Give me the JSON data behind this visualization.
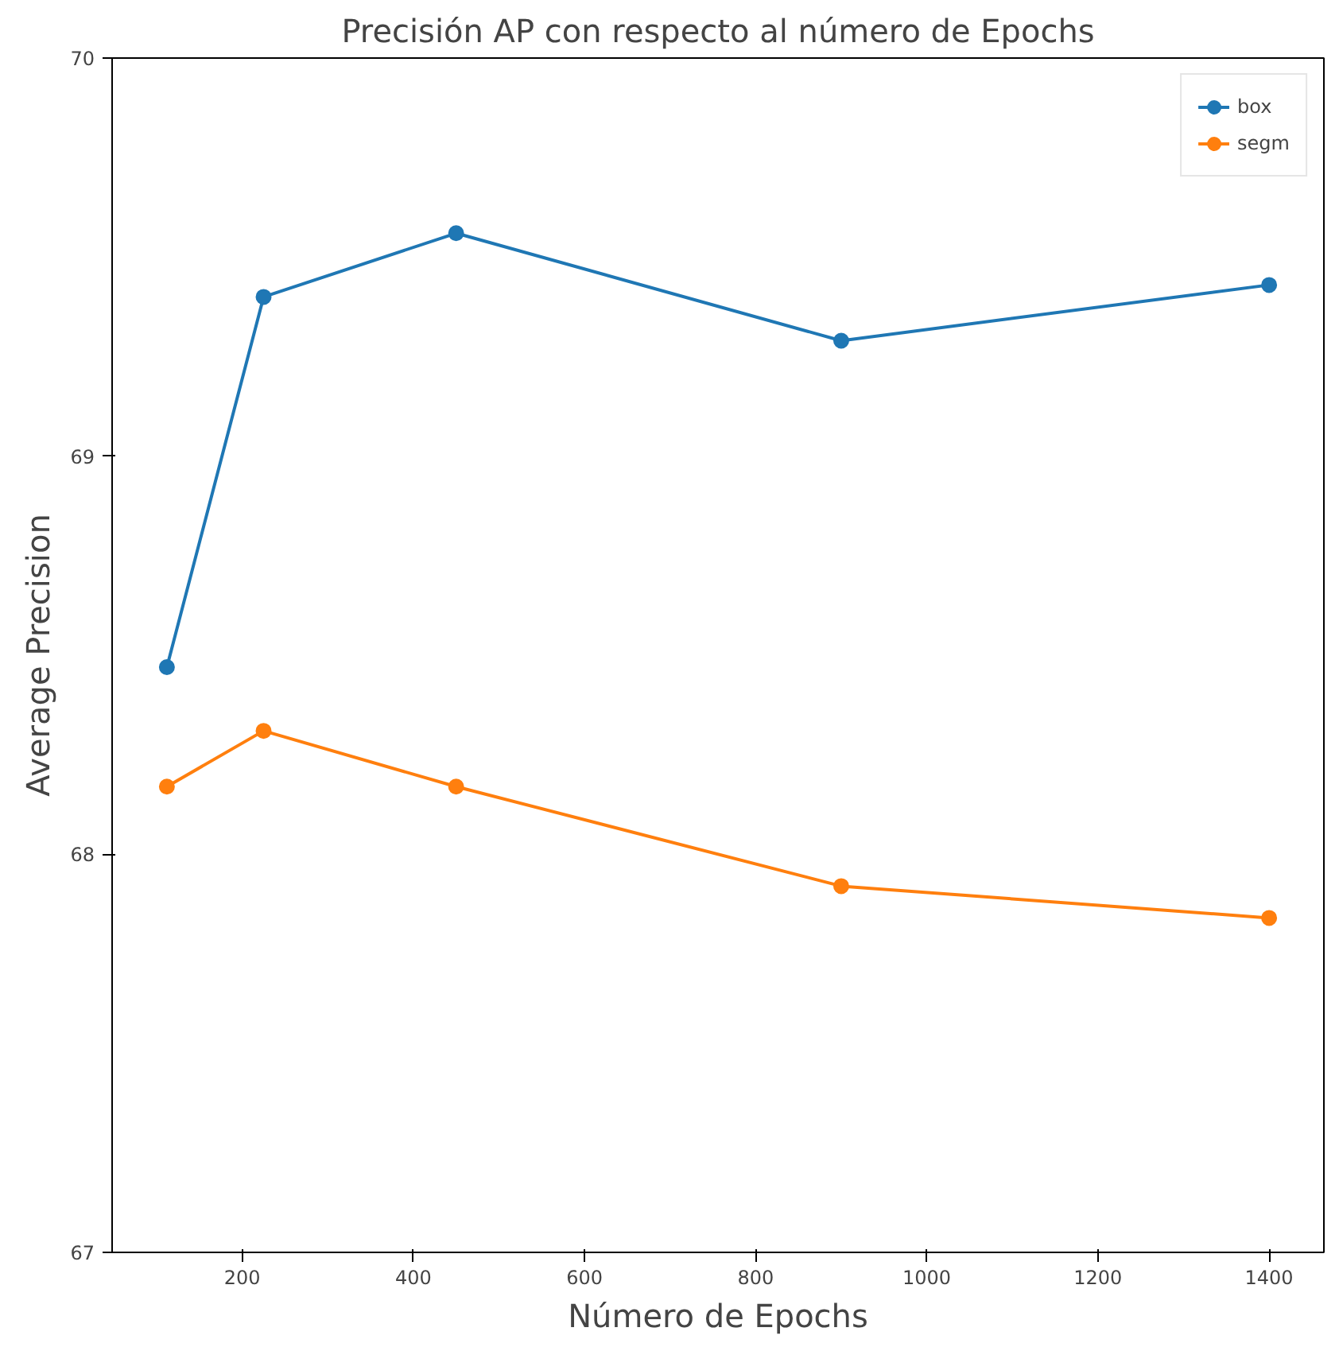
{
  "chart_data": {
    "type": "line",
    "title": "Precisión AP con respecto al número de Epochs",
    "xlabel": "Número de Epochs",
    "ylabel": "Average Precision",
    "x": [
      112,
      225,
      450,
      900,
      1400
    ],
    "series": [
      {
        "name": "box",
        "color": "#1f77b4",
        "values": [
          68.47,
          69.4,
          69.56,
          69.29,
          69.43
        ]
      },
      {
        "name": "segm",
        "color": "#ff7f0e",
        "values": [
          68.17,
          68.31,
          68.17,
          67.92,
          67.84
        ]
      }
    ],
    "xlim": [
      48,
      1464
    ],
    "xticks": [
      200,
      400,
      600,
      800,
      1000,
      1200,
      1400
    ],
    "ylim": [
      67,
      70
    ],
    "yticks": [
      67,
      68,
      69,
      70
    ],
    "grid": false,
    "legend": "top right",
    "marker": "circle",
    "line_style": "solid"
  }
}
